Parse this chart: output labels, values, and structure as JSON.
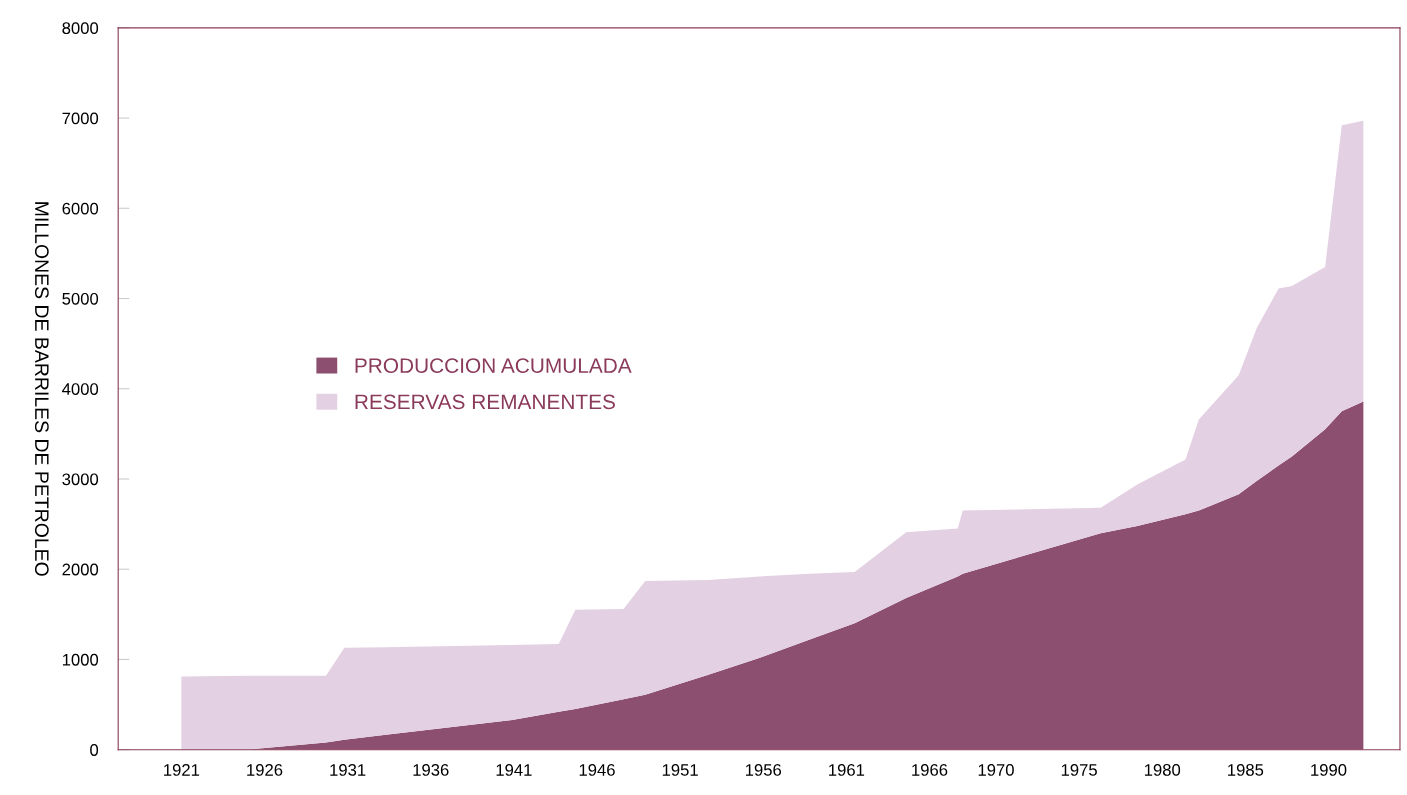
{
  "chart_data": {
    "type": "area",
    "stacked": true,
    "ylabel": "MILLONES DE BARRILES DE PETROLEO",
    "x": [
      1921,
      1925,
      1929.7,
      1930.8,
      1933.3,
      1940.9,
      1943.7,
      1944.7,
      1947.6,
      1948.9,
      1952.7,
      1955.8,
      1958.8,
      1961.5,
      1964.6,
      1967.7,
      1968,
      1976.3,
      1978.5,
      1981.4,
      1982.2,
      1984.6,
      1985.7,
      1987,
      1987.8,
      1989.8,
      1990.8,
      1992.1
    ],
    "series": [
      {
        "name": "PRODUCCION ACUMULADA",
        "color": "#8d4f6f",
        "values": [
          0,
          0,
          80,
          110,
          165,
          330,
          420,
          450,
          560,
          610,
          830,
          1020,
          1220,
          1400,
          1680,
          1920,
          1950,
          2400,
          2480,
          2610,
          2650,
          2830,
          2980,
          3150,
          3250,
          3550,
          3750,
          3860
        ]
      },
      {
        "name": "RESERVAS REMANENTES",
        "color": "#e3d0e2",
        "values": [
          810,
          820,
          740,
          1020,
          970,
          830,
          750,
          1100,
          1000,
          1260,
          1050,
          900,
          730,
          570,
          730,
          530,
          700,
          280,
          460,
          605,
          1010,
          1320,
          1700,
          1960,
          1890,
          1800,
          3170,
          3110
        ]
      }
    ],
    "xlim": [
      1917.2,
      1994.3
    ],
    "xticks": [
      1921,
      1926,
      1931,
      1936,
      1941,
      1946,
      1951,
      1956,
      1961,
      1966,
      1970,
      1975,
      1980,
      1985,
      1990
    ],
    "ylim": [
      0,
      8000
    ],
    "yticks": [
      0,
      1000,
      2000,
      3000,
      4000,
      5000,
      6000,
      7000,
      8000
    ],
    "grid": false,
    "legend": "left"
  }
}
